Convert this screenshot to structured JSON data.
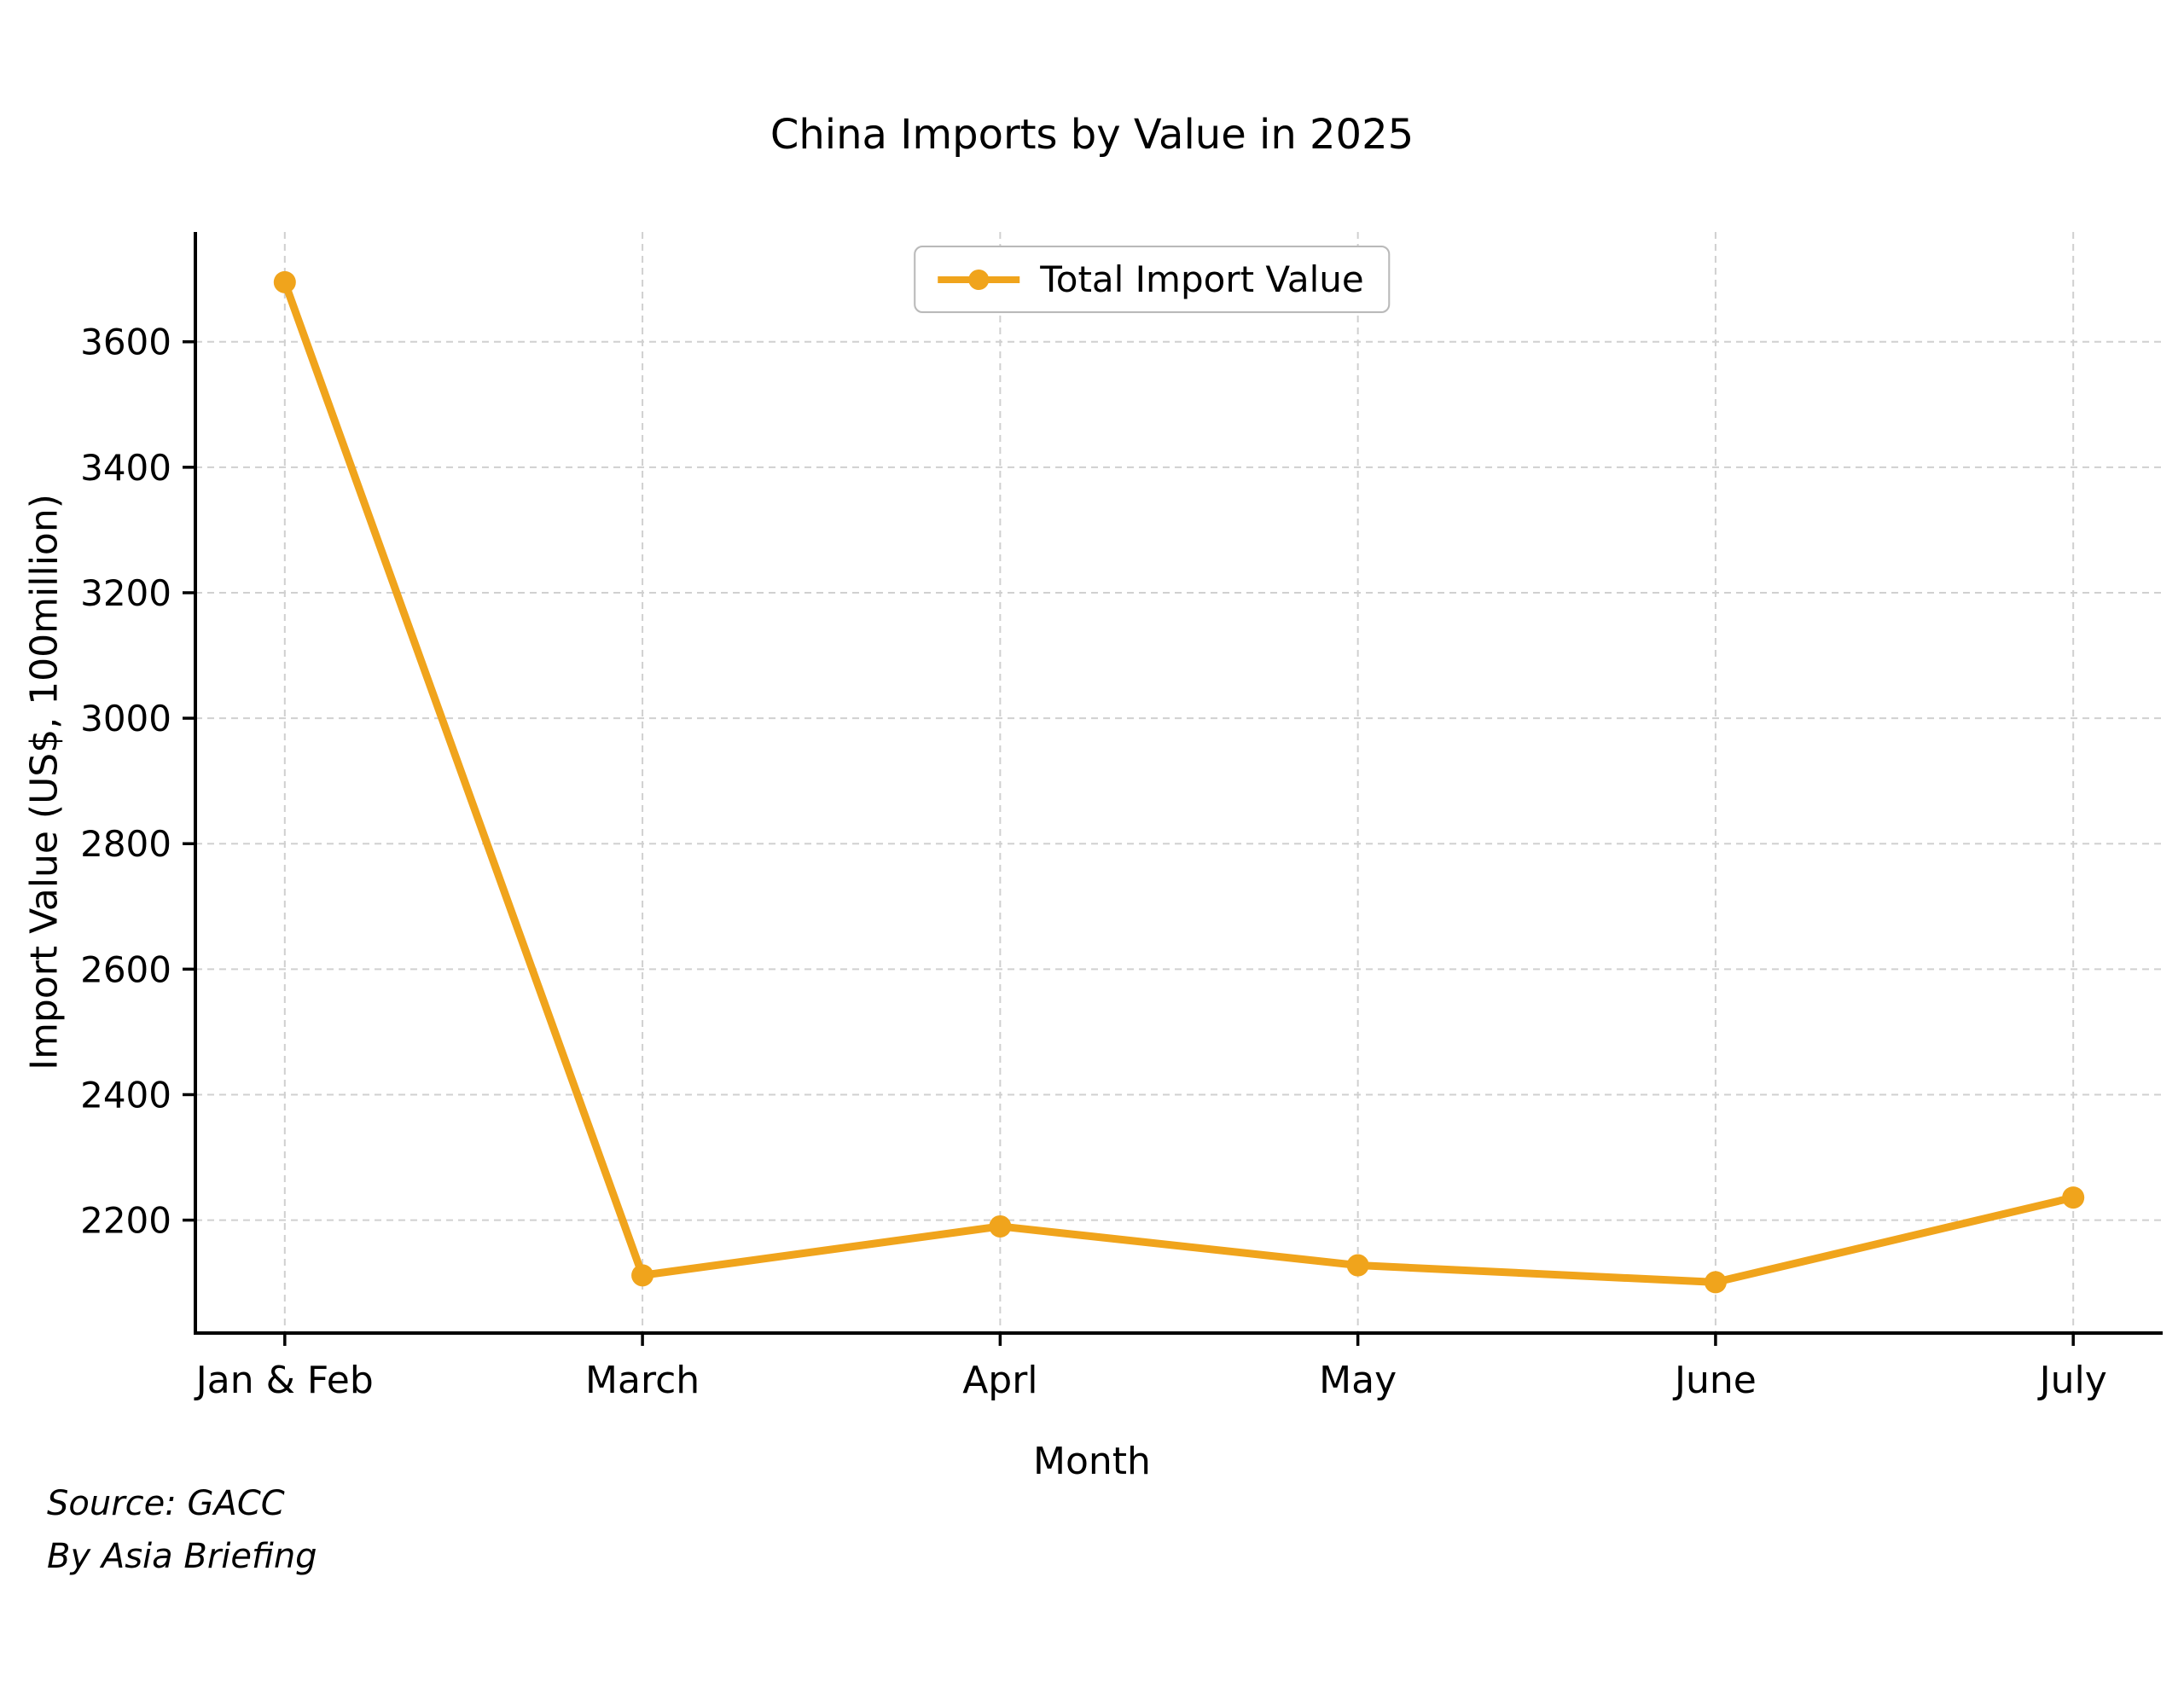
{
  "title": "China Imports by Value in 2025",
  "legend": {
    "label": "Total Import Value"
  },
  "footer": {
    "source": "Source: GACC",
    "byline": "By Asia Briefing"
  },
  "colors": {
    "line": "#F0A41C",
    "grid": "#D0D0D0",
    "axis": "#000000",
    "background": "#FFFFFF",
    "legend_border": "#B9B9B9"
  },
  "chart_data": {
    "type": "line",
    "title": "China Imports by Value in 2025",
    "xlabel": "Month",
    "ylabel": "Import Value (US$, 100million)",
    "categories": [
      "Jan & Feb",
      "March",
      "Aprl",
      "May",
      "June",
      "July"
    ],
    "series": [
      {
        "name": "Total Import Value",
        "values": [
          3695,
          2112,
          2190,
          2128,
          2101,
          2236
        ],
        "color": "#F0A41C",
        "marker": "circle"
      }
    ],
    "yticks": [
      2200,
      2400,
      2600,
      2800,
      3000,
      3200,
      3400,
      3600
    ],
    "ylim": [
      2020,
      3775
    ],
    "grid": true,
    "grid_style": "dashed",
    "legend_position": "upper center"
  }
}
